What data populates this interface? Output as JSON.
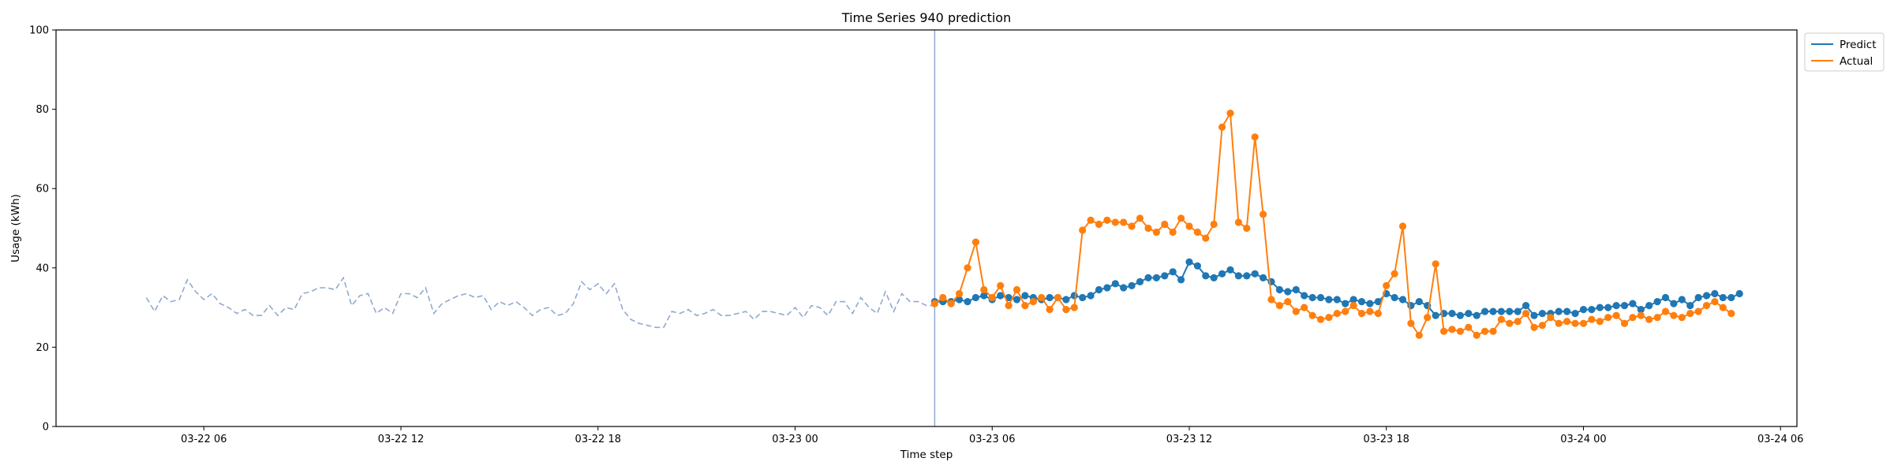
{
  "chart_data": {
    "type": "line",
    "title": "Time Series 940 prediction",
    "xlabel": "Time step",
    "ylabel": "Usage (kWh)",
    "ylim": [
      0,
      100
    ],
    "yticks": [
      "0",
      "20",
      "40",
      "60",
      "80",
      "100"
    ],
    "xlim": [
      "2024-03-22 01:30",
      "2024-03-24 06:30"
    ],
    "xticks": [
      {
        "time": "2024-03-22 06:00",
        "label": "03-22 06"
      },
      {
        "time": "2024-03-22 12:00",
        "label": "03-22 12"
      },
      {
        "time": "2024-03-22 18:00",
        "label": "03-22 18"
      },
      {
        "time": "2024-03-23 00:00",
        "label": "03-23 00"
      },
      {
        "time": "2024-03-23 06:00",
        "label": "03-23 06"
      },
      {
        "time": "2024-03-23 12:00",
        "label": "03-23 12"
      },
      {
        "time": "2024-03-23 18:00",
        "label": "03-23 18"
      },
      {
        "time": "2024-03-24 00:00",
        "label": "03-24 00"
      },
      {
        "time": "2024-03-24 06:00",
        "label": "03-24 06"
      }
    ],
    "grid": false,
    "legend_position": "outside top-right",
    "forecast_start": "2024-03-23 04:15",
    "history": {
      "start": "2024-03-22 04:15",
      "interval_minutes": 15,
      "color": "#8aa4cc",
      "style": "dashed",
      "values": [
        32.5,
        29.0,
        33.0,
        31.5,
        32.0,
        37.0,
        34.0,
        32.0,
        33.5,
        31.0,
        30.0,
        28.5,
        29.5,
        28.0,
        28.0,
        30.5,
        28.0,
        30.0,
        29.5,
        33.5,
        34.0,
        35.0,
        35.0,
        34.5,
        37.5,
        30.5,
        33.0,
        33.5,
        28.5,
        30.0,
        28.5,
        33.5,
        33.5,
        32.5,
        35.0,
        28.5,
        31.0,
        32.0,
        33.0,
        33.5,
        32.5,
        33.0,
        29.5,
        31.5,
        30.5,
        31.5,
        30.0,
        28.0,
        29.5,
        30.0,
        28.0,
        28.5,
        31.0,
        36.5,
        34.5,
        36.0,
        33.5,
        36.0,
        29.5,
        27.0,
        26.0,
        25.5,
        25.0,
        25.0,
        29.0,
        28.5,
        29.5,
        28.0,
        28.5,
        29.5,
        28.0,
        28.0,
        28.5,
        29.0,
        27.0,
        29.0,
        29.0,
        28.5,
        28.0,
        30.0,
        27.5,
        30.5,
        30.0,
        28.0,
        31.5,
        31.5,
        28.5,
        32.5,
        30.0,
        28.5,
        34.0,
        29.0,
        33.5,
        31.5,
        31.5,
        30.5,
        30.5
      ]
    },
    "series": [
      {
        "name": "Predict",
        "color": "#1f77b4",
        "start": "2024-03-23 04:15",
        "interval_minutes": 15,
        "values": [
          31.5,
          31.5,
          31.5,
          32.0,
          31.5,
          32.5,
          33.0,
          32.0,
          33.0,
          32.5,
          32.0,
          33.0,
          32.5,
          32.0,
          32.5,
          32.5,
          32.0,
          33.0,
          32.5,
          33.0,
          34.5,
          35.0,
          36.0,
          35.0,
          35.5,
          36.5,
          37.5,
          37.5,
          38.0,
          39.0,
          37.0,
          41.5,
          40.5,
          38.0,
          37.5,
          38.5,
          39.5,
          38.0,
          38.0,
          38.5,
          37.5,
          36.5,
          34.5,
          34.0,
          34.5,
          33.0,
          32.5,
          32.5,
          32.0,
          32.0,
          31.0,
          32.0,
          31.5,
          31.0,
          31.5,
          33.5,
          32.5,
          32.0,
          30.5,
          31.5,
          30.5,
          28.0,
          28.5,
          28.5,
          28.0,
          28.5,
          28.0,
          29.0,
          29.0,
          29.0,
          29.0,
          29.0,
          30.5,
          28.0,
          28.5,
          28.5,
          29.0,
          29.0,
          28.5,
          29.5,
          29.5,
          30.0,
          30.0,
          30.5,
          30.5,
          31.0,
          29.5,
          30.5,
          31.5,
          32.5,
          31.0,
          32.0,
          30.5,
          32.5,
          33.0,
          33.5,
          32.5,
          32.5,
          33.5
        ]
      },
      {
        "name": "Actual",
        "color": "#ff7f0e",
        "start": "2024-03-23 04:15",
        "interval_minutes": 15,
        "values": [
          31.0,
          32.5,
          31.0,
          33.5,
          40.0,
          46.5,
          34.5,
          32.5,
          35.5,
          30.5,
          34.5,
          30.5,
          31.5,
          32.5,
          29.5,
          32.5,
          29.5,
          30.0,
          49.5,
          52.0,
          51.0,
          52.0,
          51.5,
          51.5,
          50.5,
          52.5,
          50.0,
          49.0,
          51.0,
          49.0,
          52.5,
          50.5,
          49.0,
          47.5,
          51.0,
          75.5,
          79.0,
          51.5,
          50.0,
          73.0,
          53.5,
          32.0,
          30.5,
          31.5,
          29.0,
          30.0,
          28.0,
          27.0,
          27.5,
          28.5,
          29.0,
          30.5,
          28.5,
          29.0,
          28.5,
          35.5,
          38.5,
          50.5,
          26.0,
          23.0,
          27.5,
          41.0,
          24.0,
          24.5,
          24.0,
          25.0,
          23.0,
          24.0,
          24.0,
          27.0,
          26.0,
          26.5,
          28.5,
          25.0,
          25.5,
          27.5,
          26.0,
          26.5,
          26.0,
          26.0,
          27.0,
          26.5,
          27.5,
          28.0,
          26.0,
          27.5,
          28.0,
          27.0,
          27.5,
          29.0,
          28.0,
          27.5,
          28.5,
          29.0,
          30.5,
          31.5,
          30.0,
          28.5
        ]
      }
    ]
  }
}
